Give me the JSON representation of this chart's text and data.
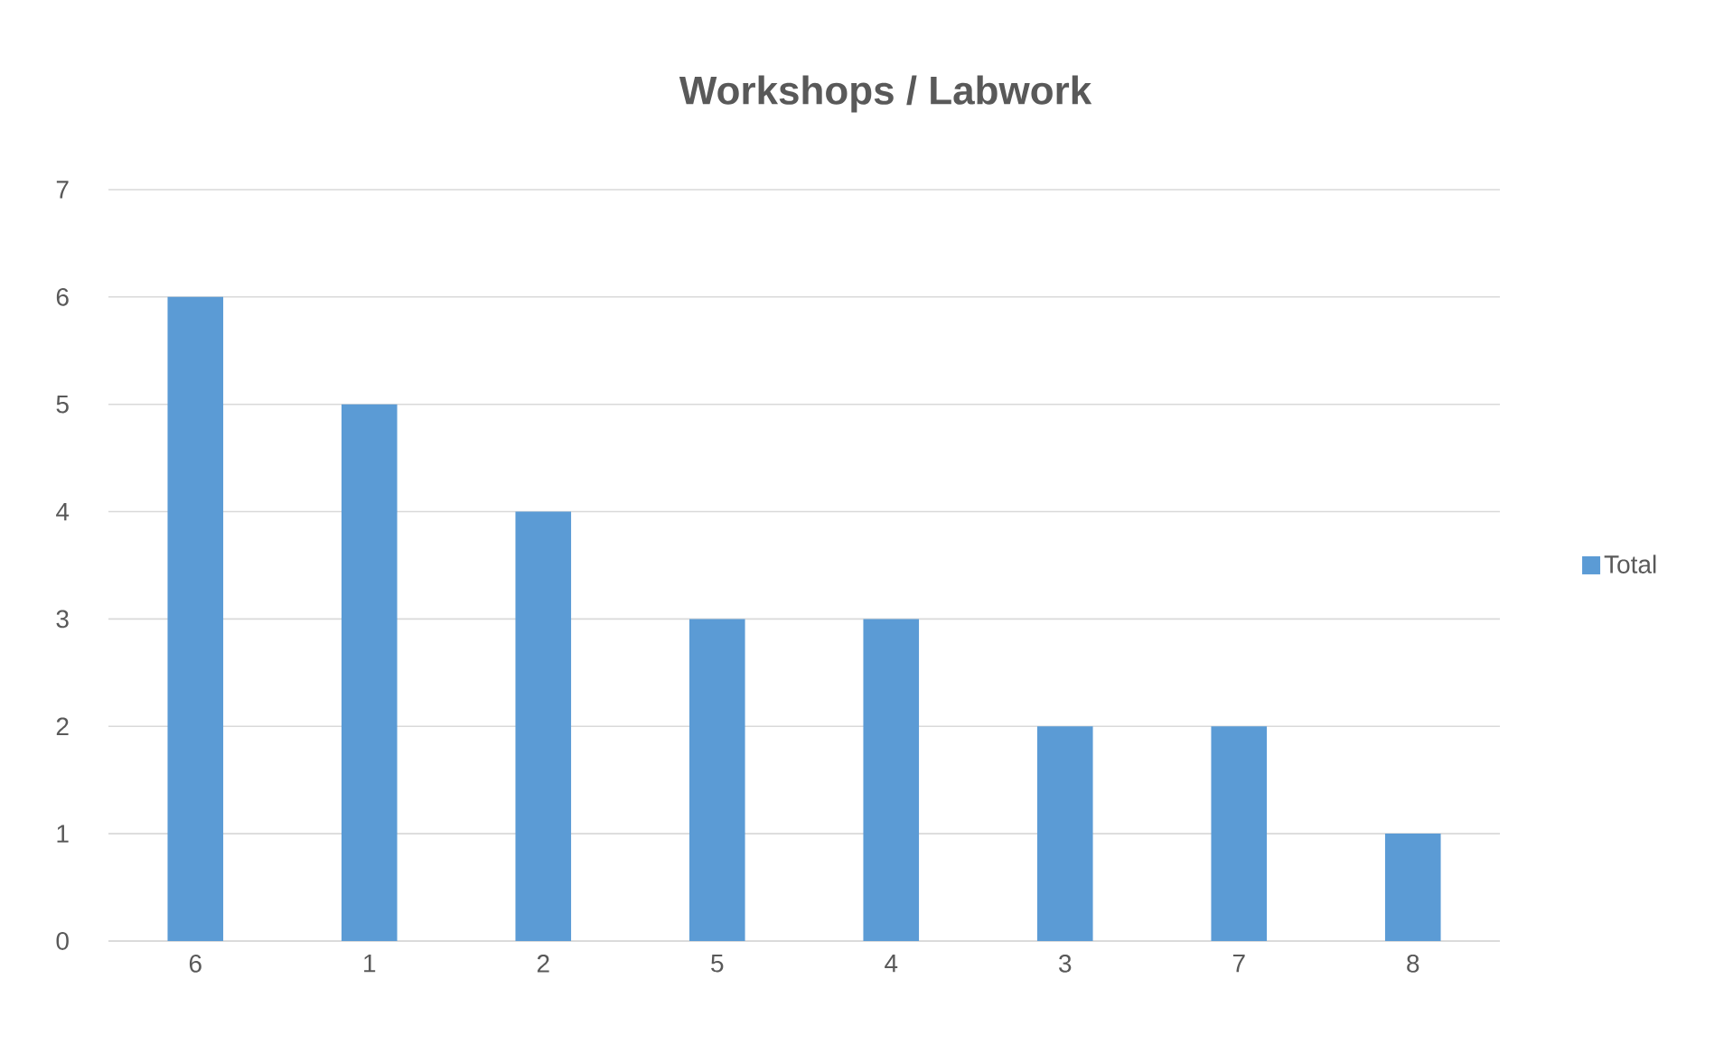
{
  "chart_data": {
    "type": "bar",
    "title": "Workshops / Labwork",
    "categories": [
      "6",
      "1",
      "2",
      "5",
      "4",
      "3",
      "7",
      "8"
    ],
    "series": [
      {
        "name": "Total",
        "color": "#5b9bd5",
        "values": [
          6,
          5,
          4,
          3,
          3,
          2,
          2,
          1
        ]
      }
    ],
    "ylim": [
      0,
      7
    ],
    "yticks": [
      0,
      1,
      2,
      3,
      4,
      5,
      6,
      7
    ],
    "grid": "y",
    "legend": "right"
  }
}
